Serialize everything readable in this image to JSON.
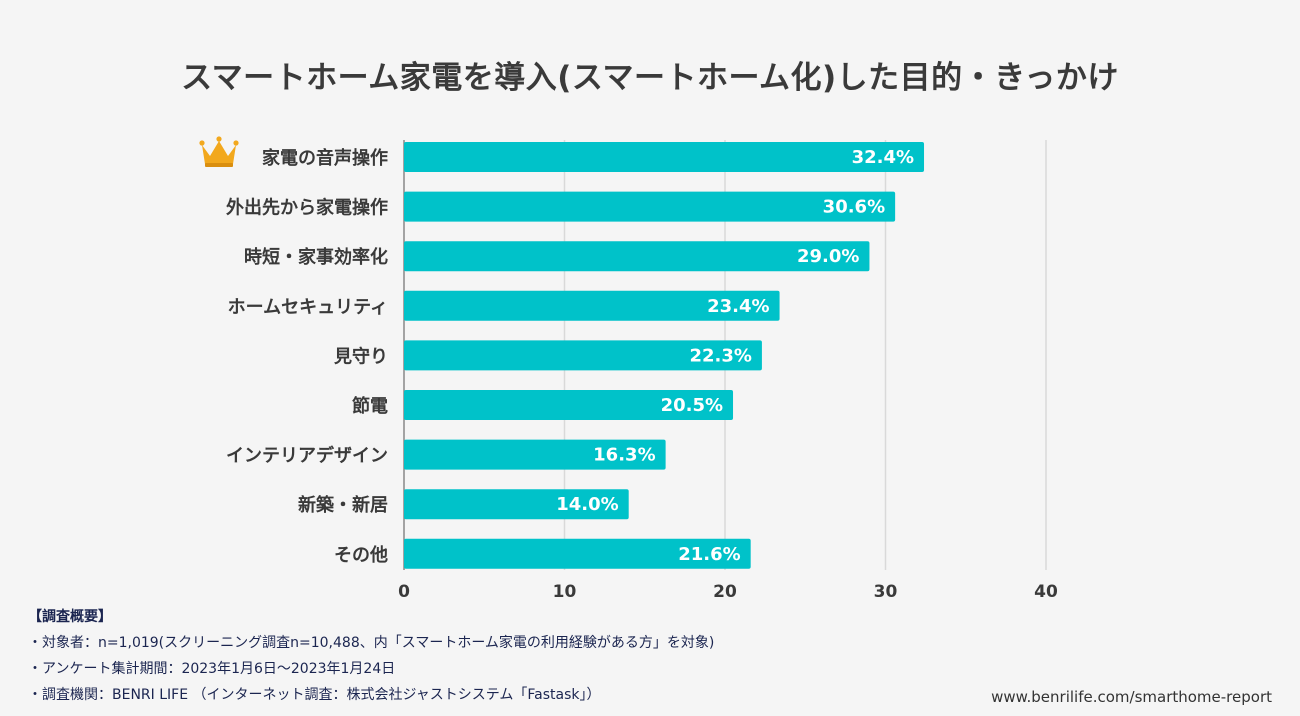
{
  "colors": {
    "bar": "#00c2c9",
    "grid": "#d9d9d9",
    "axis": "#888888",
    "label": "#3a3a3a",
    "value_text": "#ffffff",
    "crown": "#f2a81d"
  },
  "chart_data": {
    "type": "bar",
    "orientation": "horizontal",
    "title": "スマートホーム家電を導入(スマートホーム化)した目的・きっかけ",
    "categories": [
      "家電の音声操作",
      "外出先から家電操作",
      "時短・家事効率化",
      "ホームセキュリティ",
      "見守り",
      "節電",
      "インテリアデザイン",
      "新築・新居",
      "その他"
    ],
    "values": [
      32.4,
      30.6,
      29.0,
      23.4,
      22.3,
      20.5,
      16.3,
      14.0,
      21.6
    ],
    "value_labels": [
      "32.4%",
      "30.6%",
      "29.0%",
      "23.4%",
      "22.3%",
      "20.5%",
      "16.3%",
      "14.0%",
      "21.6%"
    ],
    "x_ticks": [
      0,
      10,
      20,
      30,
      40
    ],
    "xlim": [
      0,
      40
    ],
    "xlabel": "",
    "ylabel": "",
    "grid": true,
    "legend": "none",
    "highlight_icon": "crown-icon"
  },
  "survey": {
    "heading": "【調査概要】",
    "lines": [
      "・対象者：n=1,019(スクリーニング調査n=10,488、内「スマートホーム家電の利用経験がある方」を対象)",
      "・アンケート集計期間：2023年1月6日〜2023年1月24日",
      "・調査機関：BENRI LIFE （インターネット調査：株式会社ジャストシステム「Fastask」）"
    ]
  },
  "footer": {
    "url": "www.benrilife.com/smarthome-report"
  }
}
